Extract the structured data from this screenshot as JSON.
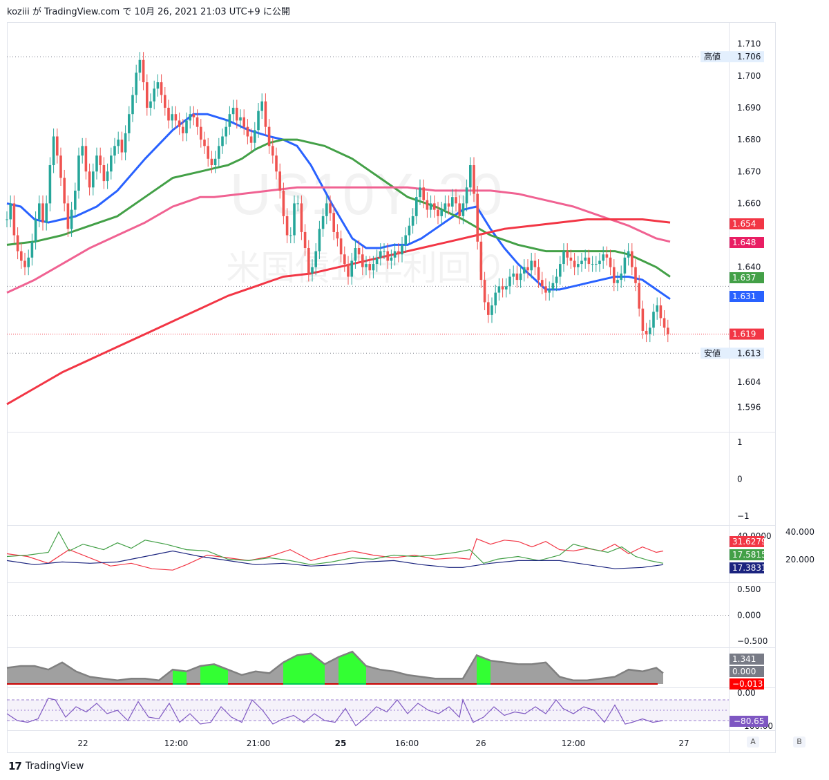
{
  "header": {
    "author": "koziii",
    "text": "が TradingView.com で 10月 26, 2021 21:03 UTC+9 に公開"
  },
  "watermark": {
    "symbol": "US10Y, 30",
    "name": "米国債10年利回り"
  },
  "footer": {
    "logo_mark": "17",
    "logo_text": "TradingView"
  },
  "buttons": {
    "a": "A",
    "b": "B"
  },
  "chart_data": {
    "type": "candlestick",
    "main": {
      "ylim": [
        1.589,
        1.716
      ],
      "y_ticks": [
        "1.710",
        "1.700",
        "1.690",
        "1.680",
        "1.670",
        "1.660",
        "1.640",
        "1.604",
        "1.596"
      ],
      "y_tick_values": [
        1.71,
        1.7,
        1.69,
        1.68,
        1.67,
        1.66,
        1.64,
        1.604,
        1.596
      ],
      "high": {
        "label": "高値",
        "value": "1.706"
      },
      "low": {
        "label": "安値",
        "value": "1.613"
      },
      "current": "1.619",
      "ma_labels": [
        {
          "value": "1.654",
          "color": "#f23645"
        },
        {
          "value": "1.648",
          "color": "#e91e63"
        },
        {
          "value": "1.637",
          "color": "#43a047"
        },
        {
          "value": "1.631",
          "color": "#2962ff"
        }
      ],
      "series": [
        {
          "name": "MA20",
          "color": "#2962ff",
          "x": [
            0,
            20,
            40,
            60,
            80,
            100,
            130,
            160,
            200,
            240,
            270,
            290,
            320,
            350,
            380,
            400,
            420,
            440,
            470,
            500,
            520,
            540,
            560,
            580,
            600,
            620,
            640,
            660,
            680,
            700,
            720,
            740,
            760,
            780,
            800,
            820,
            840,
            860,
            880,
            900,
            920,
            940,
            960
          ],
          "y": [
            1.66,
            1.659,
            1.655,
            1.654,
            1.655,
            1.656,
            1.659,
            1.664,
            1.674,
            1.683,
            1.688,
            1.688,
            1.686,
            1.683,
            1.681,
            1.68,
            1.678,
            1.672,
            1.66,
            1.649,
            1.646,
            1.646,
            1.647,
            1.647,
            1.649,
            1.652,
            1.655,
            1.658,
            1.659,
            1.652,
            1.646,
            1.641,
            1.637,
            1.633,
            1.633,
            1.634,
            1.635,
            1.636,
            1.637,
            1.637,
            1.636,
            1.633,
            1.63
          ]
        },
        {
          "name": "MA50",
          "color": "#43a047",
          "x": [
            0,
            40,
            80,
            120,
            160,
            200,
            240,
            280,
            300,
            320,
            340,
            360,
            380,
            400,
            420,
            440,
            460,
            500,
            540,
            580,
            620,
            660,
            700,
            740,
            780,
            820,
            860,
            880,
            900,
            920,
            940,
            960
          ],
          "y": [
            1.647,
            1.648,
            1.65,
            1.653,
            1.656,
            1.662,
            1.668,
            1.67,
            1.671,
            1.672,
            1.674,
            1.677,
            1.679,
            1.68,
            1.68,
            1.679,
            1.678,
            1.674,
            1.668,
            1.662,
            1.659,
            1.655,
            1.65,
            1.647,
            1.645,
            1.645,
            1.645,
            1.645,
            1.644,
            1.642,
            1.64,
            1.637
          ]
        },
        {
          "name": "MA100",
          "color": "#f06292",
          "x": [
            0,
            40,
            80,
            120,
            160,
            200,
            240,
            280,
            300,
            340,
            380,
            420,
            460,
            500,
            540,
            580,
            620,
            660,
            700,
            740,
            780,
            820,
            860,
            900,
            940,
            960
          ],
          "y": [
            1.632,
            1.636,
            1.641,
            1.646,
            1.65,
            1.654,
            1.659,
            1.662,
            1.662,
            1.663,
            1.664,
            1.665,
            1.665,
            1.665,
            1.665,
            1.665,
            1.664,
            1.664,
            1.664,
            1.663,
            1.661,
            1.659,
            1.656,
            1.653,
            1.649,
            1.648
          ]
        },
        {
          "name": "MA200",
          "color": "#f23645",
          "x": [
            0,
            40,
            80,
            120,
            160,
            200,
            240,
            280,
            320,
            360,
            400,
            440,
            480,
            520,
            560,
            600,
            640,
            680,
            720,
            760,
            800,
            840,
            880,
            920,
            960
          ],
          "y": [
            1.597,
            1.602,
            1.607,
            1.611,
            1.615,
            1.619,
            1.623,
            1.627,
            1.631,
            1.634,
            1.637,
            1.638,
            1.64,
            1.642,
            1.644,
            1.646,
            1.648,
            1.65,
            1.652,
            1.653,
            1.654,
            1.655,
            1.655,
            1.655,
            1.654
          ]
        }
      ],
      "candles": {
        "x_start": 10,
        "x_step": 5.2,
        "close": [
          1.655,
          1.66,
          1.65,
          1.645,
          1.642,
          1.64,
          1.643,
          1.648,
          1.655,
          1.66,
          1.654,
          1.66,
          1.672,
          1.681,
          1.675,
          1.668,
          1.66,
          1.652,
          1.658,
          1.664,
          1.675,
          1.678,
          1.67,
          1.665,
          1.67,
          1.675,
          1.672,
          1.667,
          1.67,
          1.675,
          1.678,
          1.68,
          1.676,
          1.682,
          1.688,
          1.694,
          1.701,
          1.705,
          1.698,
          1.69,
          1.692,
          1.696,
          1.698,
          1.694,
          1.69,
          1.686,
          1.688,
          1.686,
          1.684,
          1.682,
          1.686,
          1.688,
          1.687,
          1.684,
          1.68,
          1.678,
          1.674,
          1.672,
          1.674,
          1.678,
          1.681,
          1.684,
          1.688,
          1.69,
          1.686,
          1.687,
          1.684,
          1.681,
          1.679,
          1.683,
          1.689,
          1.692,
          1.684,
          1.678,
          1.675,
          1.67,
          1.664,
          1.656,
          1.65,
          1.65,
          1.66,
          1.66,
          1.651,
          1.646,
          1.638,
          1.64,
          1.645,
          1.652,
          1.656,
          1.66,
          1.657,
          1.651,
          1.649,
          1.644,
          1.641,
          1.637,
          1.642,
          1.646,
          1.644,
          1.64,
          1.641,
          1.639,
          1.641,
          1.643,
          1.645,
          1.645,
          1.642,
          1.643,
          1.645,
          1.644,
          1.647,
          1.65,
          1.653,
          1.656,
          1.662,
          1.665,
          1.661,
          1.658,
          1.66,
          1.658,
          1.656,
          1.658,
          1.66,
          1.659,
          1.662,
          1.66,
          1.656,
          1.66,
          1.665,
          1.672,
          1.663,
          1.648,
          1.636,
          1.629,
          1.625,
          1.628,
          1.632,
          1.634,
          1.633,
          1.634,
          1.637,
          1.638,
          1.636,
          1.638,
          1.64,
          1.639,
          1.642,
          1.64,
          1.636,
          1.634,
          1.632,
          1.633,
          1.635,
          1.637,
          1.641,
          1.645,
          1.643,
          1.642,
          1.64,
          1.641,
          1.642,
          1.643,
          1.641,
          1.641,
          1.641,
          1.642,
          1.644,
          1.643,
          1.64,
          1.635,
          1.636,
          1.638,
          1.643,
          1.645,
          1.64,
          1.635,
          1.627,
          1.62,
          1.619,
          1.621,
          1.626,
          1.628,
          1.624,
          1.621,
          1.619
        ]
      }
    },
    "indicator_1": {
      "ylim": [
        -1.2,
        1.3
      ],
      "y_ticks": [
        "1",
        "0",
        "−1"
      ],
      "y_tick_values": [
        1,
        0,
        -1
      ]
    },
    "indicator_dmi": {
      "ylim": [
        5,
        45
      ],
      "right_axis": [
        "40.000",
        "20.000"
      ],
      "clipped_tick": "40.0000",
      "labels": [
        {
          "value": "31.6279",
          "color": "#f23645"
        },
        {
          "value": "17.5815",
          "color": "#43a047"
        },
        {
          "value": "17.3831",
          "color": "#1a237e"
        }
      ],
      "series": [
        {
          "name": "DI-",
          "color": "#f23645",
          "x": [
            0,
            30,
            60,
            90,
            120,
            150,
            180,
            210,
            240,
            260,
            290,
            320,
            350,
            380,
            410,
            440,
            470,
            500,
            530,
            560,
            590,
            620,
            650,
            670,
            680,
            700,
            720,
            740,
            760,
            780,
            800,
            820,
            840,
            860,
            880,
            900,
            920,
            940,
            950
          ],
          "y": [
            25,
            23,
            18,
            28,
            22,
            16,
            18,
            14,
            13,
            17,
            24,
            22,
            20,
            23,
            28,
            20,
            24,
            27,
            24,
            22,
            24,
            21,
            22,
            21,
            36,
            32,
            35,
            34,
            30,
            34,
            28,
            27,
            29,
            27,
            32,
            25,
            30,
            26,
            27
          ]
        },
        {
          "name": "DI+",
          "color": "#43a047",
          "x": [
            0,
            30,
            60,
            75,
            90,
            110,
            140,
            160,
            180,
            200,
            230,
            260,
            290,
            320,
            350,
            380,
            410,
            440,
            470,
            500,
            530,
            560,
            590,
            620,
            650,
            670,
            690,
            710,
            740,
            770,
            800,
            820,
            850,
            870,
            890,
            910,
            930,
            950
          ],
          "y": [
            23,
            24,
            26,
            41,
            27,
            32,
            28,
            33,
            29,
            35,
            32,
            28,
            27,
            21,
            20,
            22,
            20,
            17,
            19,
            22,
            21,
            24,
            23,
            24,
            26,
            28,
            18,
            21,
            23,
            20,
            24,
            32,
            28,
            26,
            30,
            23,
            20,
            18
          ]
        },
        {
          "name": "ADX",
          "color": "#1a237e",
          "x": [
            0,
            40,
            80,
            120,
            160,
            200,
            240,
            280,
            320,
            360,
            400,
            440,
            480,
            520,
            560,
            600,
            640,
            660,
            700,
            740,
            780,
            800,
            840,
            880,
            920,
            950
          ],
          "y": [
            20,
            17,
            19,
            18,
            19,
            23,
            27,
            23,
            20,
            17,
            18,
            16,
            17,
            19,
            20,
            17,
            15,
            15,
            18,
            20,
            20,
            20,
            17,
            14,
            15,
            17
          ]
        }
      ]
    },
    "indicator_2": {
      "ylim": [
        -0.7,
        0.7
      ],
      "y_ticks": [
        "0.500",
        "0.000",
        "−0.500"
      ],
      "y_tick_values": [
        0.5,
        0,
        -0.5
      ]
    },
    "indicator_area": {
      "labels": [
        {
          "value": "1.341",
          "color": "#787b86"
        },
        {
          "value": "0.000",
          "color": "#787b86"
        },
        {
          "value": "−0.013",
          "color": "#ff0000"
        }
      ],
      "x": [
        0,
        20,
        40,
        60,
        80,
        100,
        120,
        140,
        160,
        180,
        200,
        220,
        240,
        260,
        280,
        300,
        320,
        340,
        360,
        380,
        400,
        420,
        440,
        460,
        480,
        500,
        520,
        540,
        560,
        580,
        600,
        620,
        640,
        660,
        680,
        700,
        720,
        740,
        760,
        780,
        800,
        820,
        840,
        860,
        880,
        900,
        920,
        940,
        950
      ],
      "y": [
        0.9,
        1.0,
        1.0,
        0.8,
        1.2,
        0.7,
        0.4,
        0.3,
        0.2,
        0.3,
        0.3,
        0.2,
        0.8,
        0.7,
        1.0,
        1.1,
        0.8,
        0.5,
        0.7,
        0.6,
        1.2,
        1.6,
        1.7,
        1.1,
        1.5,
        1.8,
        1.0,
        0.8,
        0.7,
        0.5,
        0.4,
        0.3,
        0.3,
        0.3,
        1.6,
        1.3,
        1.2,
        1.1,
        1.1,
        1.2,
        0.4,
        0.2,
        0.2,
        0.3,
        0.4,
        0.8,
        0.7,
        0.9,
        0.6
      ],
      "green": [
        0,
        0,
        0,
        0,
        0,
        0,
        0,
        0,
        0,
        0,
        0,
        0,
        1,
        0,
        1,
        1,
        0,
        0,
        0,
        0,
        1,
        1,
        1,
        0,
        1,
        1,
        0,
        0,
        0,
        0,
        0,
        0,
        0,
        0,
        1,
        0,
        0,
        0,
        0,
        0,
        0,
        0,
        0,
        0,
        0,
        0,
        0,
        0,
        0
      ]
    },
    "indicator_osc": {
      "top_tick": "0.00",
      "bottom_tick": "−100.00",
      "label": {
        "value": "−80.65",
        "color": "#7e57c2"
      },
      "x": [
        0,
        15,
        30,
        45,
        60,
        70,
        85,
        100,
        115,
        130,
        145,
        160,
        175,
        190,
        205,
        220,
        235,
        250,
        265,
        280,
        295,
        310,
        325,
        340,
        355,
        370,
        385,
        400,
        415,
        430,
        445,
        460,
        475,
        490,
        505,
        520,
        535,
        550,
        565,
        580,
        595,
        610,
        625,
        640,
        655,
        660,
        675,
        690,
        705,
        720,
        735,
        750,
        765,
        780,
        795,
        805,
        820,
        835,
        850,
        865,
        880,
        895,
        905,
        920,
        935,
        950
      ],
      "y": [
        -60,
        -80,
        -85,
        -75,
        -15,
        -20,
        -70,
        -40,
        -55,
        -30,
        -60,
        -50,
        -80,
        -25,
        -70,
        -75,
        -30,
        -85,
        -60,
        -90,
        -85,
        -40,
        -70,
        -85,
        -20,
        -50,
        -90,
        -75,
        -65,
        -85,
        -60,
        -80,
        -85,
        -45,
        -95,
        -70,
        -40,
        -55,
        -20,
        -60,
        -30,
        -50,
        -60,
        -40,
        -70,
        -20,
        -85,
        -70,
        -40,
        -65,
        -55,
        -60,
        -40,
        -60,
        -20,
        -45,
        -60,
        -40,
        -50,
        -85,
        -35,
        -90,
        -85,
        -75,
        -85,
        -80
      ]
    },
    "time_axis": {
      "labels": [
        "22",
        "12:00",
        "21:00",
        "25",
        "16:00",
        "26",
        "12:00",
        "27"
      ],
      "bold": [
        false,
        false,
        false,
        true,
        false,
        false,
        false,
        false
      ],
      "x_pos": [
        120,
        255,
        374,
        493,
        589,
        696,
        830,
        990
      ]
    }
  }
}
